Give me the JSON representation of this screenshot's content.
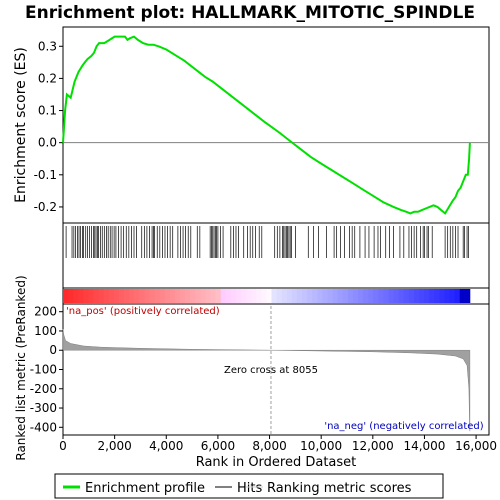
{
  "chart_data": {
    "type": "line",
    "title": "Enrichment plot: HALLMARK_MITOTIC_SPINDLE",
    "colors": {
      "es_line": "#00e000",
      "hits": "#000000",
      "metric_fill": "#a0a0a0",
      "pos_label": "#c00000",
      "neg_label": "#0000c0",
      "zero_cross": "#808080"
    },
    "panels": [
      {
        "name": "enrichment-profile",
        "ylabel": "Enrichment score (ES)",
        "ylim": [
          -0.25,
          0.36
        ],
        "yticks": [
          -0.2,
          -0.1,
          0.0,
          0.1,
          0.2,
          0.3
        ],
        "ytick_labels": [
          "-0.2",
          "-0.1",
          "0.0",
          "0.1",
          "0.2",
          "0.3"
        ],
        "zero_line": true,
        "series": [
          {
            "kind": "es_profile",
            "x": [
              0,
              80,
              150,
              300,
              450,
              600,
              750,
              850,
              950,
              1100,
              1200,
              1300,
              1400,
              1600,
              1800,
              2000,
              2200,
              2400,
              2500,
              2600,
              2750,
              2900,
              3100,
              3300,
              3500,
              3700,
              4000,
              4300,
              4700,
              5100,
              5500,
              5800,
              6200,
              6600,
              7000,
              7400,
              7800,
              8055,
              8400,
              8800,
              9200,
              9600,
              10000,
              10400,
              10800,
              11200,
              11600,
              12000,
              12400,
              12800,
              13100,
              13300,
              13450,
              13600,
              13750,
              13900,
              14050,
              14200,
              14350,
              14500,
              14650,
              14800,
              14950,
              15100,
              15200,
              15300,
              15400,
              15500,
              15600,
              15680,
              15730,
              15760
            ],
            "y": [
              0.0,
              0.1,
              0.15,
              0.14,
              0.19,
              0.22,
              0.24,
              0.25,
              0.26,
              0.27,
              0.28,
              0.3,
              0.31,
              0.31,
              0.32,
              0.33,
              0.33,
              0.33,
              0.32,
              0.325,
              0.33,
              0.32,
              0.31,
              0.305,
              0.305,
              0.3,
              0.29,
              0.275,
              0.255,
              0.23,
              0.205,
              0.19,
              0.165,
              0.14,
              0.115,
              0.09,
              0.065,
              0.05,
              0.03,
              0.005,
              -0.02,
              -0.045,
              -0.065,
              -0.085,
              -0.105,
              -0.125,
              -0.145,
              -0.165,
              -0.185,
              -0.2,
              -0.21,
              -0.215,
              -0.22,
              -0.215,
              -0.215,
              -0.21,
              -0.205,
              -0.2,
              -0.195,
              -0.2,
              -0.21,
              -0.22,
              -0.2,
              -0.18,
              -0.17,
              -0.15,
              -0.14,
              -0.12,
              -0.1,
              -0.1,
              -0.05,
              0.0
            ]
          }
        ]
      },
      {
        "name": "hits",
        "hit_positions": [
          120,
          350,
          420,
          480,
          560,
          620,
          680,
          750,
          800,
          880,
          950,
          1020,
          1100,
          1180,
          1230,
          1280,
          1330,
          1380,
          1450,
          1520,
          1600,
          1680,
          1750,
          1830,
          1900,
          1980,
          2050,
          2150,
          2250,
          2350,
          2450,
          2550,
          2650,
          2750,
          2850,
          3050,
          3150,
          3250,
          3350,
          3450,
          3500,
          3550,
          3650,
          3750,
          3850,
          3950,
          4050,
          4150,
          4250,
          4450,
          4550,
          4650,
          4750,
          4850,
          4950,
          5200,
          5300,
          5700,
          5750,
          5800,
          5850,
          5900,
          5950,
          6000,
          6100,
          6200,
          6500,
          6600,
          6700,
          6800,
          7000,
          7150,
          7250,
          7350,
          7450,
          7600,
          7700,
          8200,
          8300,
          8400,
          8500,
          8550,
          8600,
          8650,
          8700,
          8750,
          8800,
          8850,
          9000,
          9500,
          9700,
          9900,
          10200,
          10500,
          10600,
          10750,
          10900,
          11100,
          11200,
          11300,
          11500,
          11700,
          11850,
          12050,
          12200,
          12300,
          12500,
          12650,
          12800,
          13050,
          13200,
          13400,
          13500,
          13600,
          13700,
          13850,
          13950,
          14000,
          14100,
          14150,
          14300,
          14800,
          14900,
          15000,
          15100,
          15200,
          15300,
          15500,
          15550,
          15650,
          15700
        ]
      },
      {
        "name": "ranked-list-metric",
        "ylabel": "Ranked list metric (PreRanked)",
        "ylim": [
          -440,
          240
        ],
        "yticks": [
          -400,
          -300,
          -200,
          -100,
          0,
          100,
          200
        ],
        "ytick_labels": [
          "-400",
          "-300",
          "-200",
          "-100",
          "0",
          "100",
          "200"
        ],
        "metric_x": [
          0,
          30,
          100,
          300,
          800,
          1500,
          3000,
          5000,
          8055,
          10000,
          12000,
          13500,
          14500,
          15200,
          15500,
          15650,
          15720,
          15750,
          15760
        ],
        "metric_y": [
          110,
          80,
          50,
          35,
          22,
          16,
          10,
          5,
          0,
          -4,
          -8,
          -14,
          -20,
          -30,
          -45,
          -80,
          -200,
          -400,
          -420
        ],
        "zero_cross_label": "Zero cross at 8055",
        "zero_cross_x": 8055,
        "pos_label": "'na_pos' (positively correlated)",
        "neg_label": "'na_neg' (negatively correlated)"
      }
    ],
    "xlabel": "Rank in Ordered Dataset",
    "xlim": [
      0,
      16500
    ],
    "xticks": [
      0,
      2000,
      4000,
      6000,
      8000,
      10000,
      12000,
      14000,
      16000
    ],
    "xtick_labels": [
      "0",
      "2,000",
      "4,000",
      "6,000",
      "8,000",
      "10,000",
      "12,000",
      "14,000",
      "16,000"
    ],
    "total_rank": 15760,
    "legend": {
      "placement": "bottom",
      "entries": [
        {
          "label": "Enrichment profile",
          "style": "green-line"
        },
        {
          "label": "Hits",
          "style": "black-line"
        },
        {
          "label": "Ranking metric scores",
          "style": "gray-line"
        }
      ]
    }
  }
}
